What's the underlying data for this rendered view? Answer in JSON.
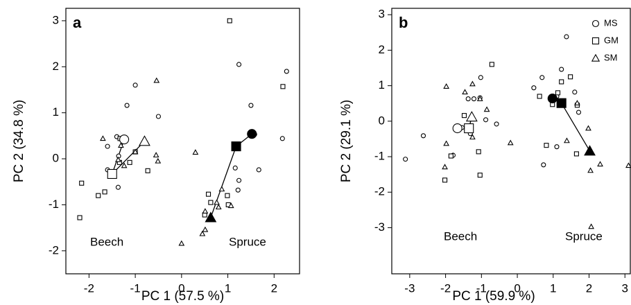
{
  "chart_data": [
    {
      "type": "scatter",
      "panel": "a",
      "xlabel": "PC 1 (57.5 %)",
      "ylabel": "PC 2 (34.8 %)",
      "xlim": [
        -2.5,
        2.55
      ],
      "ylim": [
        -2.5,
        3.27
      ],
      "xticks": [
        -2,
        -1,
        0,
        1,
        2
      ],
      "yticks": [
        -2,
        -1,
        0,
        1,
        2,
        3
      ],
      "annotations": [
        "Beech",
        "Spruce"
      ],
      "color": "#000000",
      "series": [
        {
          "marker": "circle",
          "filled": false,
          "size": "small",
          "x": [
            -1,
            -1.18,
            -0.5,
            -1.4,
            -1.6,
            -1.36,
            -1.6,
            -1.37,
            1.24,
            1.5,
            2.27,
            2.18,
            1.67,
            1.16,
            1.24,
            1.22,
            1.58
          ],
          "values": [
            1.6,
            1.16,
            0.92,
            0.48,
            0.27,
            0.06,
            -0.24,
            -0.62,
            2.05,
            1.16,
            1.9,
            0.44,
            -0.24,
            -0.2,
            -0.47,
            -0.68,
            0.53
          ]
        },
        {
          "marker": "square",
          "filled": false,
          "size": "small",
          "x": [
            -2.16,
            -2.2,
            -1.66,
            -1.8,
            -1.33,
            -1.34,
            -1.12,
            -0.73,
            -1,
            1.04,
            2.19,
            0.99,
            1.01,
            0.58,
            0.63,
            0.5
          ],
          "values": [
            -0.53,
            -1.28,
            -0.72,
            -0.8,
            0.44,
            -0.08,
            -0.08,
            -0.26,
            0.15,
            3,
            1.57,
            -0.8,
            -1,
            -0.77,
            -0.95,
            -1.22
          ]
        },
        {
          "marker": "triangle",
          "filled": false,
          "size": "small",
          "x": [
            -0.54,
            -1.7,
            -1.31,
            -1.37,
            -1.24,
            -1,
            -0.55,
            -0.51,
            0.3,
            0,
            0.45,
            0.51,
            0.8,
            0.87,
            0.51,
            0.76,
            1.07
          ],
          "values": [
            1.7,
            0.44,
            0.29,
            -0.02,
            -0.15,
            0.15,
            0.08,
            -0.05,
            0.14,
            -1.84,
            -1.63,
            -1.54,
            -1.05,
            -0.66,
            -1.14,
            -0.95,
            -1.02
          ]
        },
        {
          "marker": "circle",
          "filled": false,
          "size": "large",
          "x": [
            -1.24
          ],
          "values": [
            0.42
          ]
        },
        {
          "marker": "square",
          "filled": false,
          "size": "large",
          "x": [
            -1.5
          ],
          "values": [
            -0.33
          ]
        },
        {
          "marker": "triangle",
          "filled": false,
          "size": "large",
          "x": [
            -0.8
          ],
          "values": [
            0.38
          ]
        },
        {
          "marker": "circle",
          "filled": true,
          "size": "large",
          "x": [
            1.52
          ],
          "values": [
            0.54
          ]
        },
        {
          "marker": "square",
          "filled": true,
          "size": "large",
          "x": [
            1.18
          ],
          "values": [
            0.27
          ]
        },
        {
          "marker": "triangle",
          "filled": true,
          "size": "large",
          "x": [
            0.63
          ],
          "values": [
            -1.28
          ]
        }
      ]
    },
    {
      "type": "scatter",
      "panel": "b",
      "xlabel": "PC 1 (59.9 %)",
      "ylabel": "PC 2 (29.1 %)",
      "xlim": [
        -3.5,
        3.15
      ],
      "ylim": [
        -4.3,
        3.18
      ],
      "xticks": [
        -3,
        -2,
        -1,
        0,
        1,
        2,
        3
      ],
      "yticks": [
        -3,
        -2,
        -1,
        0,
        1,
        2,
        3
      ],
      "annotations": [
        "Beech",
        "Spruce"
      ],
      "color": "#000000",
      "legend": "top-right",
      "series": [
        {
          "name": "MS",
          "marker": "circle",
          "filled": false,
          "size": "small",
          "x": [
            -3.12,
            -2.62,
            -1.37,
            -1.21,
            -1.02,
            -1.04,
            -0.88,
            -0.58,
            -1.54,
            -1.31,
            -1.79,
            0.73,
            0.46,
            0.69,
            1.23,
            1.37,
            1.6,
            1.71,
            1.1,
            1.1
          ],
          "values": [
            -1.07,
            -0.41,
            0.63,
            0.63,
            1.23,
            0.66,
            0.04,
            -0.08,
            -0.18,
            -0.35,
            -0.96,
            -1.23,
            0.94,
            1.23,
            1.46,
            2.38,
            0.82,
            0.25,
            0.7,
            -0.72
          ]
        },
        {
          "name": "GM",
          "marker": "square",
          "filled": false,
          "size": "small",
          "x": [
            -0.71,
            -1.48,
            -1.85,
            -2.02,
            -1.04,
            -1.08,
            0.62,
            1.13,
            1.23,
            1.48,
            1.27,
            0.98,
            0.81,
            1.65,
            1.67
          ],
          "values": [
            1.6,
            0.16,
            -0.98,
            -1.66,
            -1.52,
            -0.86,
            0.7,
            0.8,
            1.11,
            1.25,
            0.49,
            0.47,
            -0.68,
            -0.92,
            0.45
          ]
        },
        {
          "name": "SM",
          "marker": "triangle",
          "filled": false,
          "size": "small",
          "x": [
            -1.98,
            -2.02,
            -1.98,
            -1.46,
            -1.25,
            -1.04,
            -0.85,
            -1.27,
            -1.25,
            -0.19,
            1.67,
            1.38,
            1.98,
            2.04,
            2.31,
            3.1,
            2.06
          ],
          "values": [
            -0.63,
            -1.29,
            0.98,
            0.82,
            1.05,
            0.63,
            0.33,
            0.06,
            -0.45,
            -0.61,
            0.51,
            -0.55,
            -0.2,
            -1.39,
            -1.21,
            -1.25,
            -2.97
          ]
        },
        {
          "marker": "circle",
          "filled": false,
          "size": "large",
          "x": [
            -1.67
          ],
          "values": [
            -0.2
          ]
        },
        {
          "marker": "square",
          "filled": false,
          "size": "large",
          "x": [
            -1.35
          ],
          "values": [
            -0.2
          ]
        },
        {
          "marker": "triangle",
          "filled": false,
          "size": "large",
          "x": [
            -1.27
          ],
          "values": [
            0.12
          ]
        },
        {
          "marker": "circle",
          "filled": true,
          "size": "large",
          "x": [
            0.98
          ],
          "values": [
            0.64
          ]
        },
        {
          "marker": "square",
          "filled": true,
          "size": "large",
          "x": [
            1.23
          ],
          "values": [
            0.51
          ]
        },
        {
          "marker": "triangle",
          "filled": true,
          "size": "large",
          "x": [
            2.02
          ],
          "values": [
            -0.84
          ]
        }
      ]
    }
  ]
}
